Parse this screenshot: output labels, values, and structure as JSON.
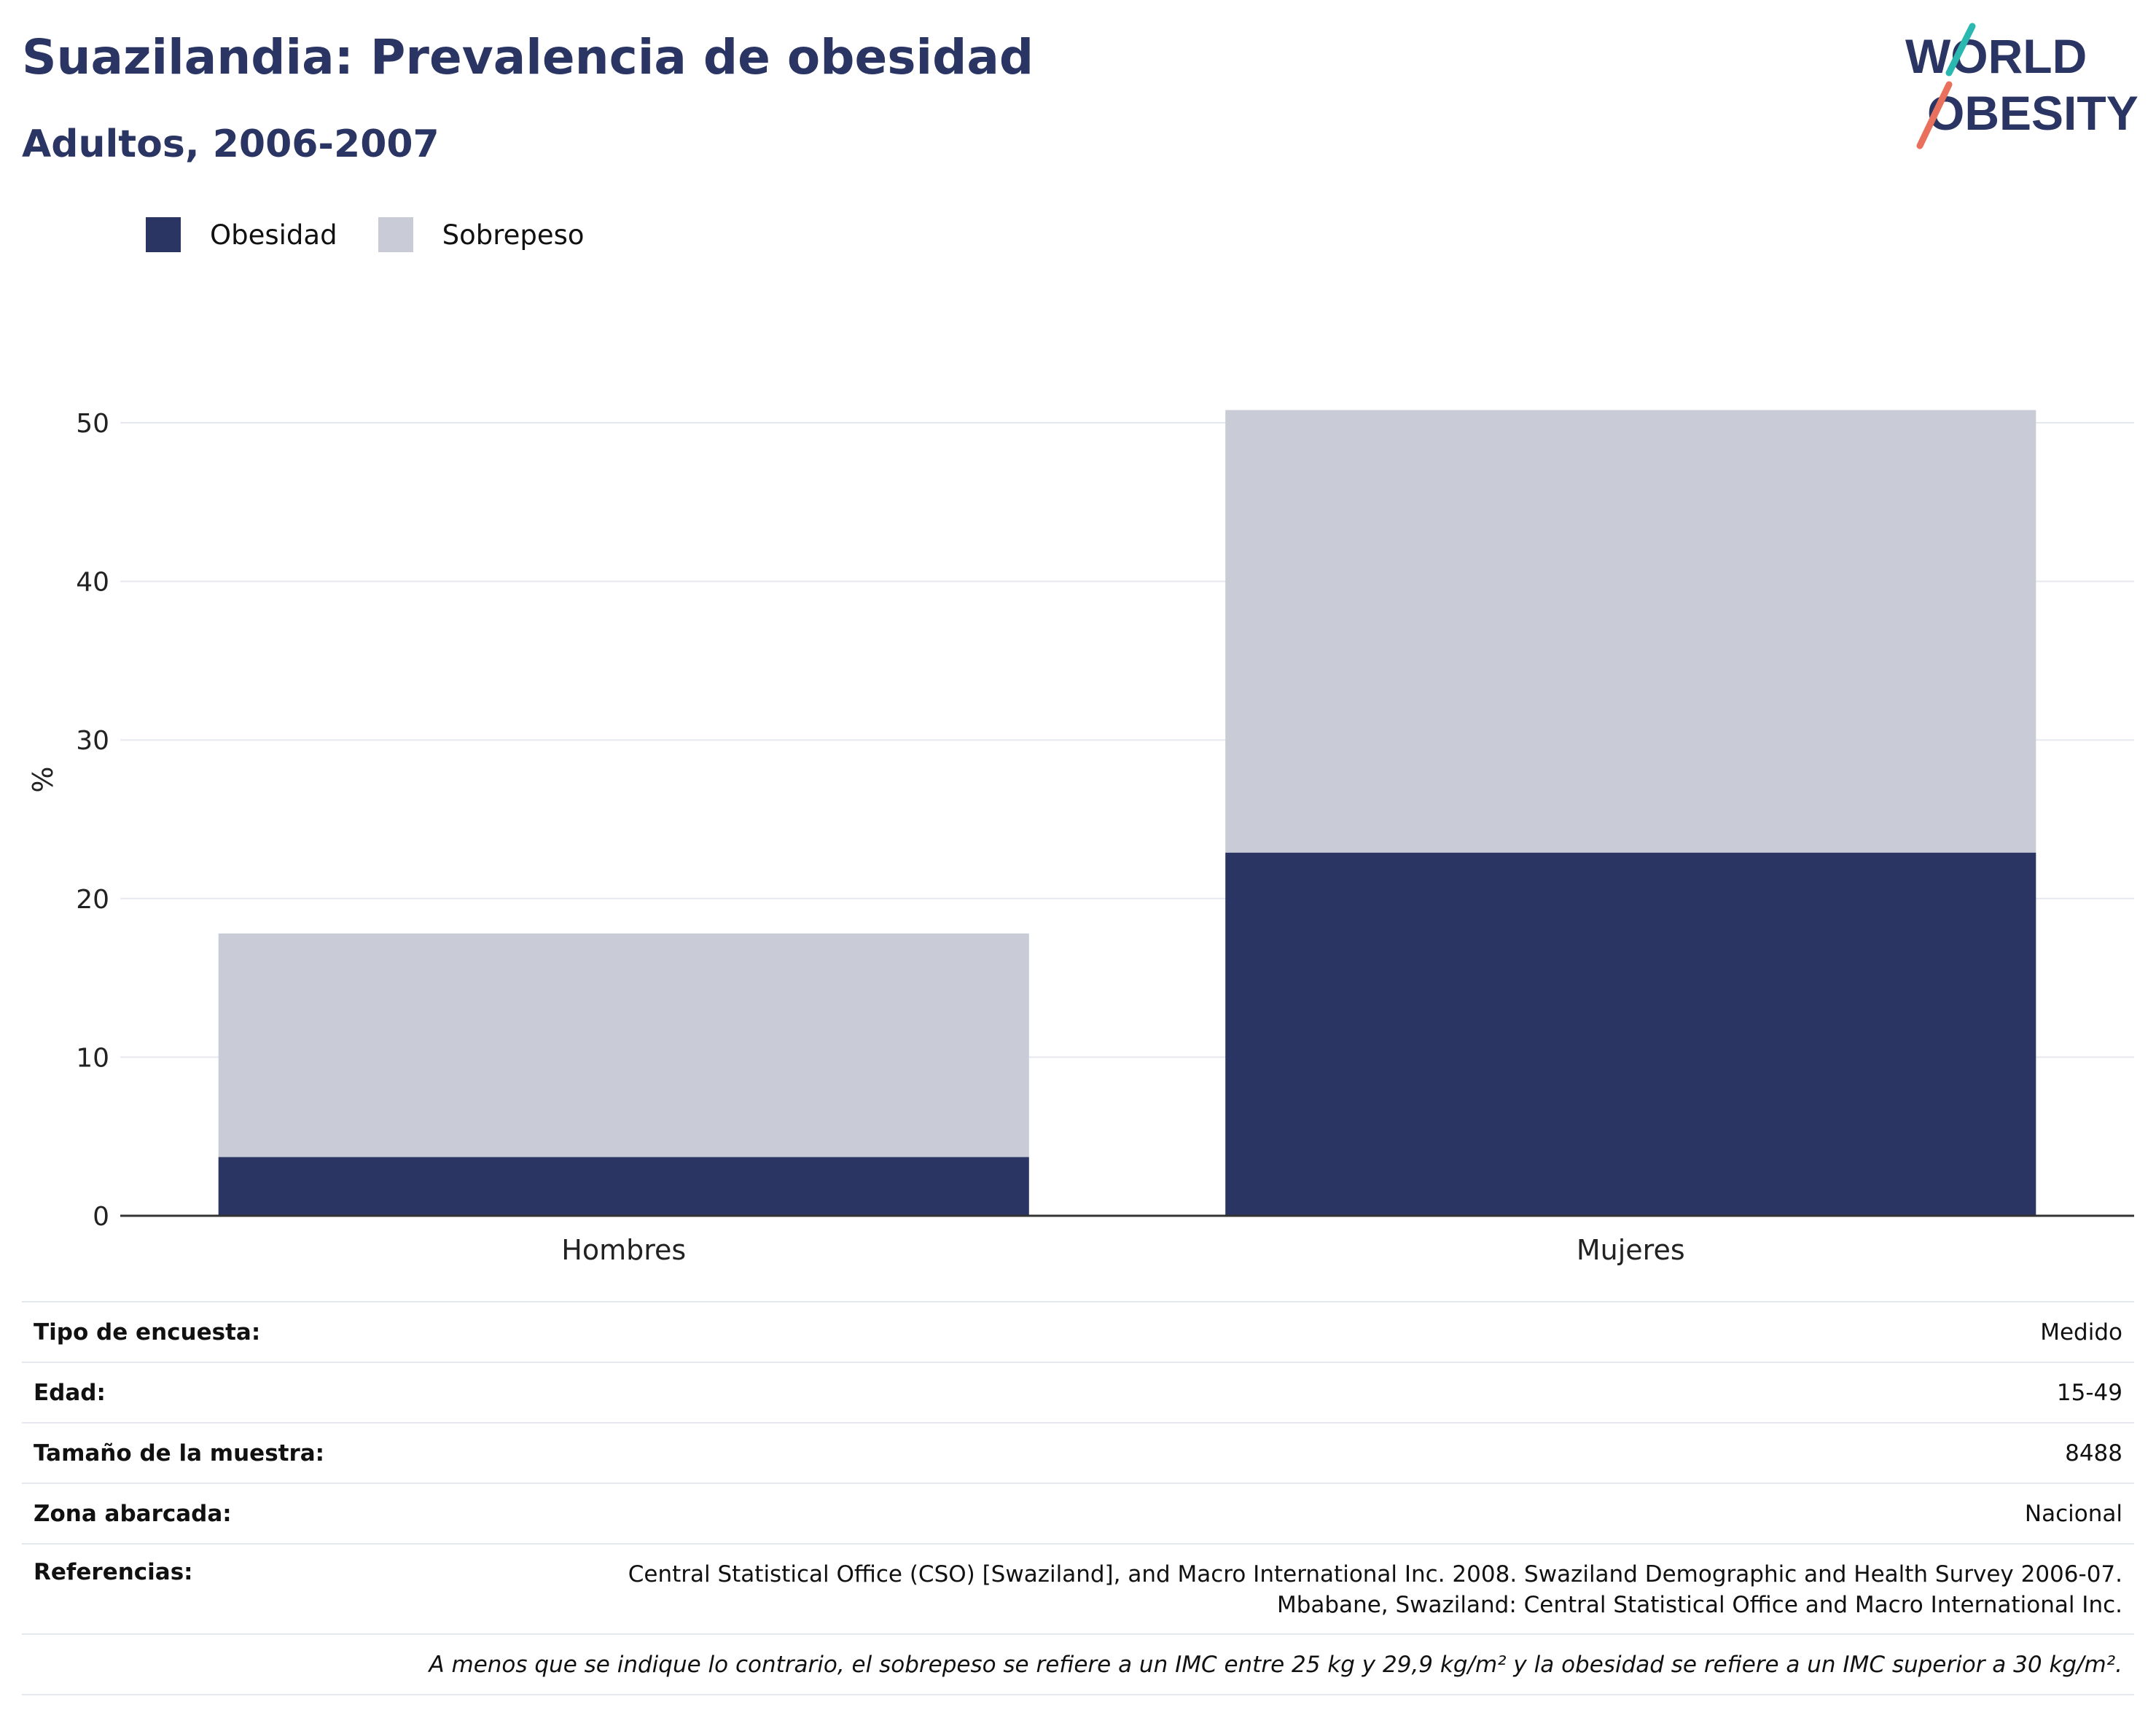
{
  "header": {
    "title": "Suazilandia: Prevalencia de obesidad",
    "subtitle": "Adultos, 2006-2007"
  },
  "logo": {
    "line1": "WORLD",
    "line2": "OBESITY"
  },
  "colors": {
    "obesidad": "#2a3563",
    "sobrepeso": "#c9ccd7",
    "grid": "#e6e8f0",
    "axis": "#333333"
  },
  "legend": {
    "items": [
      "Obesidad",
      "Sobrepeso"
    ]
  },
  "chart_data": {
    "type": "bar",
    "stacked": true,
    "categories": [
      "Hombres",
      "Mujeres"
    ],
    "series": [
      {
        "name": "Obesidad",
        "values": [
          3.7,
          22.9
        ]
      },
      {
        "name": "Sobrepeso",
        "values": [
          14.1,
          27.9
        ]
      }
    ],
    "ylabel": "%",
    "ylim": [
      0,
      55
    ],
    "yticks": [
      0,
      10,
      20,
      30,
      40,
      50
    ],
    "grid": true,
    "legend_position": "top-left"
  },
  "info": {
    "rows": [
      {
        "key": "Tipo de encuesta:",
        "value": "Medido"
      },
      {
        "key": "Edad:",
        "value": "15-49"
      },
      {
        "key": "Tamaño de la muestra:",
        "value": "8488"
      },
      {
        "key": "Zona abarcada:",
        "value": "Nacional"
      }
    ],
    "references_key": "Referencias:",
    "references_line1": "Central Statistical Office (CSO) [Swaziland], and Macro International Inc. 2008. Swaziland Demographic and Health Survey 2006-07.",
    "references_line2": "Mbabane, Swaziland: Central Statistical Office and Macro International Inc.",
    "note": "A menos que se indique lo contrario, el sobrepeso se refiere a un IMC entre 25 kg y 29,9 kg/m² y la obesidad se refiere a un IMC superior a 30 kg/m²."
  }
}
